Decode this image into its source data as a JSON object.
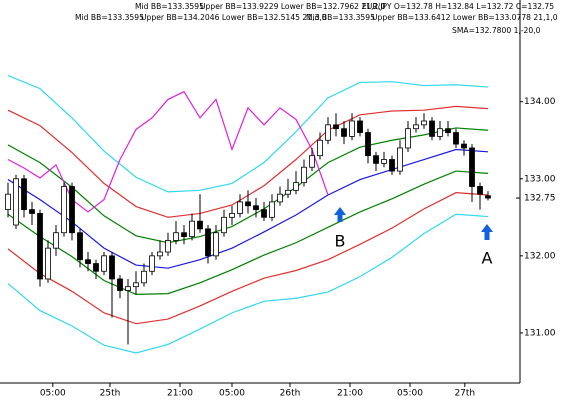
{
  "chart_data": {
    "type": "candlestick",
    "indicator_labels": [
      {
        "text": "Mid BB=133.3595",
        "color": "#1818e8"
      },
      {
        "text": "Upper BB=133.9229 Lower BB=132.7962 21,2,0",
        "color": "#e03030"
      },
      {
        "text": "EUR/JPY O=132.78 H=132.84 L=132.72 C=132.75",
        "color": "#202020"
      },
      {
        "text": "Mid BB=133.3595",
        "color": "#1818e8"
      },
      {
        "text": "Upper BB=134.2046 Lower BB=132.5145 21,3,0",
        "color": "#30c8e0"
      },
      {
        "text": "Mid BB=133.3595",
        "color": "#1818e8"
      },
      {
        "text": "Upper BB=133.6412 Lower BB=133.0778 21,1,0",
        "color": "#008000"
      },
      {
        "text": "SMA=132.7800 1,-20,0",
        "color": "#e020e0"
      }
    ],
    "annotations": [
      "B",
      "A"
    ],
    "x": [
      0,
      1,
      2,
      3,
      4,
      5,
      6,
      7,
      8,
      9,
      10,
      11,
      12,
      13,
      14,
      15,
      16,
      17,
      18,
      19,
      20,
      21,
      22,
      23,
      24,
      25,
      26,
      27,
      28,
      29,
      30,
      31,
      32,
      33,
      34,
      35,
      36,
      37,
      38,
      39,
      40,
      41,
      42,
      43,
      44,
      45,
      46,
      47,
      48,
      49,
      50,
      51,
      52,
      53,
      54,
      55,
      56,
      57,
      58,
      59,
      60
    ],
    "open": [
      132.6,
      132.4,
      133.0,
      132.6,
      132.55,
      131.7,
      132.1,
      132.3,
      132.9,
      132.3,
      131.95,
      131.9,
      131.8,
      132.0,
      131.7,
      131.55,
      131.6,
      131.65,
      131.8,
      132.0,
      132.05,
      132.2,
      132.3,
      132.25,
      132.45,
      132.35,
      132.0,
      132.3,
      132.5,
      132.55,
      132.7,
      132.65,
      132.6,
      132.5,
      132.7,
      132.8,
      132.85,
      132.95,
      133.15,
      133.3,
      133.5,
      133.7,
      133.65,
      133.55,
      133.75,
      133.6,
      133.3,
      133.2,
      133.25,
      133.1,
      133.4,
      133.65,
      133.7,
      133.75,
      133.55,
      133.65,
      133.6,
      133.45,
      133.4,
      132.9,
      132.78
    ],
    "high": [
      132.95,
      133.05,
      133.05,
      132.7,
      132.6,
      132.2,
      132.4,
      132.95,
      132.95,
      132.35,
      132.05,
      131.95,
      132.05,
      132.05,
      131.75,
      131.7,
      131.8,
      131.9,
      132.05,
      132.2,
      132.3,
      132.45,
      132.4,
      132.55,
      132.8,
      132.4,
      132.4,
      132.6,
      132.65,
      132.8,
      132.85,
      132.75,
      132.7,
      132.8,
      132.9,
      133.0,
      133.1,
      133.25,
      133.4,
      133.6,
      133.8,
      133.85,
      133.75,
      133.85,
      133.8,
      133.65,
      133.35,
      133.35,
      133.3,
      133.5,
      133.75,
      133.8,
      133.85,
      133.8,
      133.75,
      133.75,
      133.65,
      133.5,
      133.45,
      132.95,
      132.84
    ],
    "low": [
      132.5,
      132.35,
      132.5,
      132.4,
      131.6,
      131.65,
      132.0,
      132.25,
      132.2,
      131.85,
      131.8,
      131.7,
      131.75,
      131.2,
      131.45,
      130.85,
      131.5,
      131.6,
      131.75,
      131.95,
      132.0,
      132.15,
      132.15,
      132.2,
      132.3,
      131.9,
      131.95,
      132.25,
      132.4,
      132.5,
      132.55,
      132.5,
      132.45,
      132.45,
      132.65,
      132.75,
      132.8,
      132.9,
      133.1,
      133.25,
      133.45,
      133.55,
      133.45,
      133.5,
      133.55,
      133.2,
      133.1,
      133.15,
      133.05,
      133.05,
      133.35,
      133.6,
      133.65,
      133.5,
      133.5,
      133.55,
      133.4,
      133.3,
      132.7,
      132.6,
      132.72
    ],
    "close": [
      132.8,
      133.0,
      132.6,
      132.55,
      131.7,
      132.1,
      132.3,
      132.9,
      132.3,
      131.95,
      131.9,
      131.8,
      132.0,
      131.7,
      131.55,
      131.6,
      131.65,
      131.8,
      132.0,
      132.05,
      132.2,
      132.3,
      132.25,
      132.45,
      132.35,
      132.0,
      132.3,
      132.5,
      132.55,
      132.7,
      132.65,
      132.6,
      132.5,
      132.7,
      132.8,
      132.85,
      132.95,
      133.15,
      133.3,
      133.5,
      133.7,
      133.65,
      133.55,
      133.75,
      133.6,
      133.3,
      133.2,
      133.25,
      133.1,
      133.4,
      133.65,
      133.7,
      133.75,
      133.55,
      133.65,
      133.6,
      133.45,
      133.4,
      132.9,
      132.8,
      132.75
    ],
    "up_color": "#ffffff",
    "down_color": "#000000",
    "lines": [
      {
        "color": "#30d8f0",
        "x": [
          0,
          4,
          8,
          12,
          16,
          20,
          24,
          28,
          32,
          36,
          40,
          44,
          48,
          52,
          56,
          60
        ],
        "values": [
          134.34,
          134.17,
          133.79,
          133.36,
          133.02,
          132.83,
          132.85,
          132.94,
          133.21,
          133.61,
          134.05,
          134.25,
          134.26,
          134.21,
          134.22,
          134.19
        ]
      },
      {
        "color": "#30d8f0",
        "x": [
          0,
          4,
          8,
          12,
          16,
          20,
          24,
          28,
          32,
          36,
          40,
          44,
          48,
          52,
          56,
          60
        ],
        "values": [
          131.64,
          131.29,
          131.09,
          130.84,
          130.74,
          130.85,
          131.05,
          131.26,
          131.41,
          131.45,
          131.53,
          131.73,
          131.98,
          132.29,
          132.54,
          132.51
        ]
      },
      {
        "color": "#e03030",
        "x": [
          0,
          4,
          8,
          12,
          16,
          20,
          24,
          28,
          32,
          36,
          40,
          44,
          48,
          52,
          56,
          60
        ],
        "values": [
          133.89,
          133.69,
          133.34,
          132.94,
          132.64,
          132.5,
          132.55,
          132.66,
          132.91,
          133.25,
          133.63,
          133.83,
          133.88,
          133.89,
          133.94,
          133.91
        ]
      },
      {
        "color": "#e03030",
        "x": [
          0,
          4,
          8,
          12,
          16,
          20,
          24,
          28,
          32,
          36,
          40,
          44,
          48,
          52,
          56,
          60
        ],
        "values": [
          132.09,
          131.77,
          131.54,
          131.26,
          131.12,
          131.18,
          131.35,
          131.54,
          131.71,
          131.81,
          131.95,
          132.15,
          132.36,
          132.61,
          132.82,
          132.79
        ]
      },
      {
        "color": "#008000",
        "x": [
          0,
          4,
          8,
          12,
          16,
          20,
          24,
          28,
          32,
          36,
          40,
          44,
          48,
          52,
          56,
          60
        ],
        "values": [
          133.44,
          133.21,
          132.89,
          132.52,
          132.26,
          132.17,
          132.25,
          132.38,
          132.61,
          132.89,
          133.21,
          133.41,
          133.5,
          133.57,
          133.66,
          133.63
        ]
      },
      {
        "color": "#008000",
        "x": [
          0,
          4,
          8,
          12,
          16,
          20,
          24,
          28,
          32,
          36,
          40,
          44,
          48,
          52,
          56,
          60
        ],
        "values": [
          132.54,
          132.25,
          131.99,
          131.68,
          131.5,
          131.51,
          131.65,
          131.82,
          132.01,
          132.17,
          132.37,
          132.57,
          132.74,
          132.93,
          133.1,
          133.07
        ]
      },
      {
        "color": "#1818e8",
        "x": [
          0,
          4,
          8,
          12,
          16,
          20,
          24,
          28,
          32,
          36,
          40,
          44,
          48,
          52,
          56,
          60
        ],
        "values": [
          132.99,
          132.73,
          132.44,
          132.1,
          131.88,
          131.84,
          131.95,
          132.1,
          132.31,
          132.53,
          132.79,
          132.99,
          133.12,
          133.25,
          133.38,
          133.35
        ]
      },
      {
        "color": "#e020e0",
        "x": [
          0,
          2,
          4,
          6,
          8,
          10,
          12,
          14,
          16,
          18,
          20,
          22,
          24,
          26,
          28,
          30,
          32,
          34,
          36,
          38,
          40
        ],
        "values": [
          133.25,
          133.14,
          133.01,
          133.18,
          132.73,
          132.57,
          132.73,
          133.25,
          133.64,
          133.79,
          134.03,
          134.13,
          133.79,
          134.03,
          133.38,
          133.92,
          133.7,
          133.92,
          133.77,
          133.38,
          132.79
        ]
      }
    ],
    "xlim": [
      -1,
      64
    ],
    "ylim": [
      130.35,
      135.32
    ],
    "yticks": [
      {
        "value": 131,
        "label": "131.00"
      },
      {
        "value": 132,
        "label": "132.00"
      },
      {
        "value": 133,
        "label": "133.00"
      },
      {
        "value": 134,
        "label": "134.00"
      }
    ],
    "xticks": [
      {
        "value": 5.6,
        "label": "05:00"
      },
      {
        "value": 12.75,
        "label": "25th"
      },
      {
        "value": 21.5,
        "label": "21:00"
      },
      {
        "value": 28,
        "label": "05:00"
      },
      {
        "value": 35.25,
        "label": "26th"
      },
      {
        "value": 42.75,
        "label": "21:00"
      },
      {
        "value": 50.25,
        "label": "05:00"
      },
      {
        "value": 57.1,
        "label": "27th"
      }
    ],
    "last_price": {
      "value": 132.75,
      "label": "132.75"
    }
  }
}
